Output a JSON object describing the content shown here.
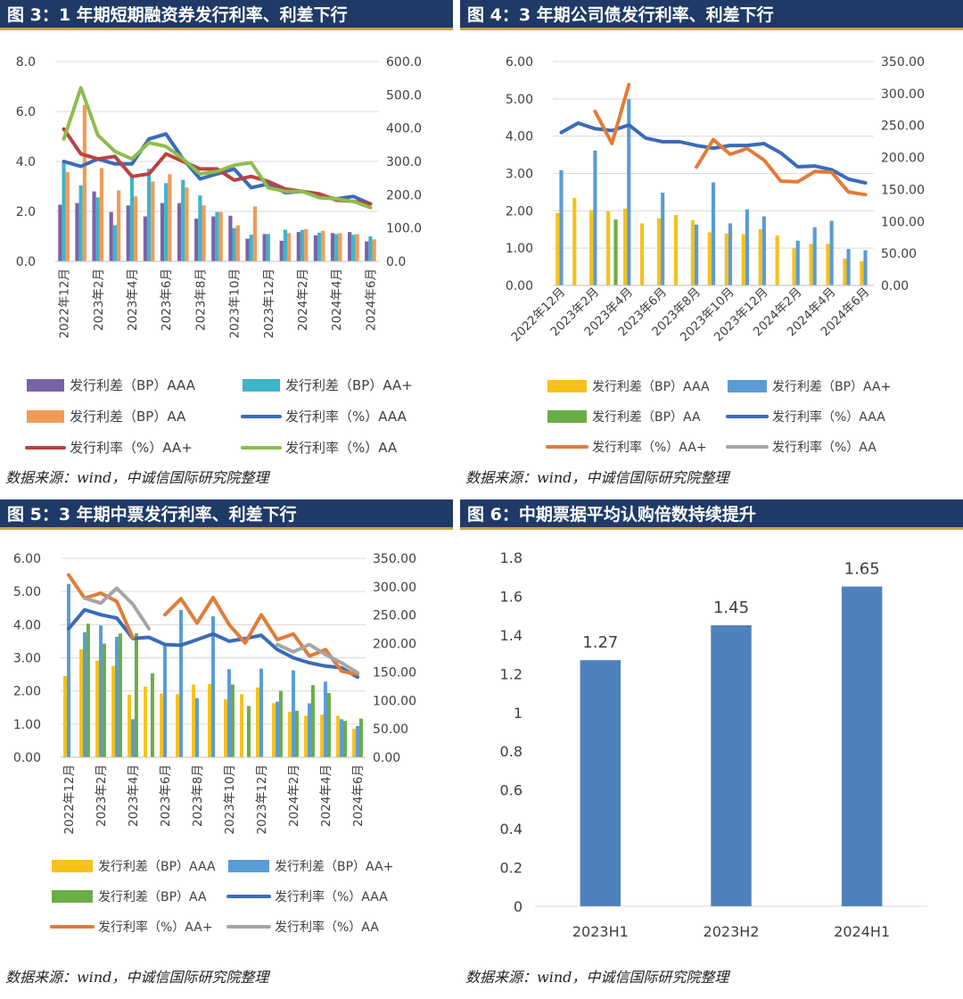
{
  "panels": [
    {
      "title": "图 3：1 年期短期融资券发行利率、利差下行",
      "source": "数据来源：wind，中诚信国际研究院整理"
    },
    {
      "title": "图 4：3 年期公司债发行利率、利差下行",
      "source": "数据来源：wind，中诚信国际研究院整理"
    },
    {
      "title": "图 5：3 年期中票发行利率、利差下行",
      "source": "数据来源：wind，中诚信国际研究院整理"
    },
    {
      "title": "图 6：中期票据平均认购倍数持续提升",
      "source": "数据来源：wind，中诚信国际研究院整理"
    }
  ],
  "chart_data": [
    {
      "type": "bar",
      "categories": [
        "2022年12月",
        "2023年1月",
        "2023年2月",
        "2023年3月",
        "2023年4月",
        "2023年5月",
        "2023年6月",
        "2023年7月",
        "2023年8月",
        "2023年9月",
        "2023年10月",
        "2023年11月",
        "2023年12月",
        "2024年1月",
        "2024年2月",
        "2024年3月",
        "2024年4月",
        "2024年5月",
        "2024年6月"
      ],
      "tick_labels": [
        "2022年12月",
        "2023年2月",
        "2023年4月",
        "2023年6月",
        "2023年8月",
        "2023年10月",
        "2023年12月",
        "2024年2月",
        "2024年4月",
        "2024年6月"
      ],
      "left_axis": {
        "min": 0,
        "max": 8,
        "ticks": [
          "0.0",
          "2.0",
          "4.0",
          "6.0",
          "8.0"
        ]
      },
      "right_axis": {
        "min": 0,
        "max": 600,
        "ticks": [
          "0.0",
          "100.0",
          "200.0",
          "300.0",
          "400.0",
          "500.0",
          "600.0"
        ]
      },
      "bar_series": [
        {
          "name": "发行利差（BP）AAA",
          "color": "#7b62a8",
          "values": [
            170,
            175,
            210,
            148,
            168,
            135,
            175,
            175,
            128,
            135,
            137,
            68,
            82,
            62,
            88,
            78,
            85,
            88,
            60
          ]
        },
        {
          "name": "发行利差（BP）AA+",
          "color": "#3fb5c8",
          "values": [
            300,
            228,
            192,
            108,
            252,
            278,
            235,
            245,
            198,
            148,
            100,
            80,
            82,
            95,
            94,
            86,
            82,
            80,
            75
          ]
        },
        {
          "name": "发行利差（BP）AA",
          "color": "#f29b57",
          "values": [
            268,
            470,
            280,
            213,
            195,
            240,
            262,
            222,
            168,
            148,
            108,
            165,
            0,
            85,
            97,
            92,
            85,
            82,
            66
          ]
        }
      ],
      "line_series": [
        {
          "name": "发行利率（%）AAA",
          "color": "#3b6bb7",
          "values": [
            4.0,
            3.8,
            4.1,
            3.9,
            3.9,
            4.9,
            5.1,
            4.1,
            3.3,
            3.5,
            3.7,
            2.95,
            3.1,
            2.75,
            2.8,
            2.6,
            2.5,
            2.6,
            2.3
          ]
        },
        {
          "name": "发行利率（%）AA+",
          "color": "#b94341",
          "values": [
            5.3,
            4.3,
            4.1,
            4.2,
            3.4,
            3.5,
            4.3,
            4.0,
            3.7,
            3.7,
            3.25,
            3.4,
            3.2,
            2.9,
            2.8,
            2.7,
            2.45,
            2.4,
            2.3
          ]
        },
        {
          "name": "发行利率（%）AA",
          "color": "#8dbd4d",
          "values": [
            4.9,
            6.95,
            5.05,
            4.4,
            4.1,
            4.75,
            4.6,
            4.1,
            3.5,
            3.6,
            3.85,
            3.95,
            2.95,
            2.8,
            2.8,
            2.55,
            2.5,
            2.4,
            2.15
          ]
        }
      ],
      "legend": [
        "发行利差（BP）AAA",
        "发行利差（BP）AA+",
        "发行利差（BP）AA",
        "发行利率（%）AAA",
        "发行利率（%）AA+",
        "发行利率（%）AA"
      ]
    },
    {
      "type": "bar",
      "categories": [
        "2022年12月",
        "2023年1月",
        "2023年2月",
        "2023年3月",
        "2023年4月",
        "2023年5月",
        "2023年6月",
        "2023年7月",
        "2023年8月",
        "2023年9月",
        "2023年10月",
        "2023年11月",
        "2023年12月",
        "2024年1月",
        "2024年2月",
        "2024年3月",
        "2024年4月",
        "2024年5月",
        "2024年6月"
      ],
      "tick_labels": [
        "2022年12月",
        "2023年2月",
        "2023年4月",
        "2023年6月",
        "2023年8月",
        "2023年10月",
        "2023年12月",
        "2024年2月",
        "2024年4月",
        "2024年6月"
      ],
      "left_axis": {
        "min": 0,
        "max": 6,
        "ticks": [
          "0.00",
          "1.00",
          "2.00",
          "3.00",
          "4.00",
          "5.00",
          "6.00"
        ]
      },
      "right_axis": {
        "min": 0,
        "max": 350,
        "ticks": [
          "0.00",
          "50.00",
          "100.00",
          "150.00",
          "200.00",
          "250.00",
          "300.00",
          "350.00"
        ]
      },
      "bar_series": [
        {
          "name": "发行利差（BP）AAA",
          "color": "#f5c21b",
          "values": [
            113,
            137,
            118,
            116,
            120,
            97,
            105,
            110,
            102,
            83,
            81,
            80,
            88,
            78,
            58,
            65,
            65,
            42,
            38
          ]
        },
        {
          "name": "发行利差（BP）AA+",
          "color": "#5b9bd5",
          "values": [
            180,
            0,
            211,
            0,
            291,
            0,
            145,
            0,
            95,
            161,
            97,
            119,
            108,
            0,
            70,
            91,
            101,
            57,
            55
          ]
        },
        {
          "name": "发行利差（BP）AA",
          "color": "#6aad46",
          "values": [
            0,
            0,
            0,
            103,
            0,
            0,
            0,
            0,
            0,
            0,
            0,
            0,
            0,
            0,
            0,
            0,
            0,
            0,
            0
          ]
        }
      ],
      "line_series": [
        {
          "name": "发行利率（%）AAA",
          "color": "#3b6bb7",
          "values": [
            4.1,
            4.35,
            4.2,
            4.15,
            4.3,
            3.95,
            3.85,
            3.85,
            3.75,
            3.68,
            3.75,
            3.75,
            3.8,
            3.55,
            3.18,
            3.2,
            3.1,
            2.85,
            2.75
          ]
        },
        {
          "name": "发行利率（%）AA+",
          "color": "#e27b37",
          "values": [
            null,
            null,
            272,
            222,
            314,
            null,
            null,
            null,
            185,
            228,
            205,
            214,
            196,
            163,
            162,
            178,
            177,
            146,
            142
          ]
        },
        {
          "name": "发行利率（%）AA",
          "color": "#a5a5a5",
          "values": [
            null,
            null,
            null,
            null,
            null,
            null,
            null,
            null,
            null,
            null,
            null,
            null,
            null,
            null,
            null,
            null,
            null,
            null,
            null
          ]
        }
      ],
      "right_line_series": [
        "发行利率（%）AA+"
      ],
      "legend": [
        "发行利差（BP）AAA",
        "发行利差（BP）AA+",
        "发行利差（BP）AA",
        "发行利率（%）AAA",
        "发行利率（%）AA+",
        "发行利率（%）AA"
      ]
    },
    {
      "type": "bar",
      "categories": [
        "2022年12月",
        "2023年1月",
        "2023年2月",
        "2023年3月",
        "2023年4月",
        "2023年5月",
        "2023年6月",
        "2023年7月",
        "2023年8月",
        "2023年9月",
        "2023年10月",
        "2023年11月",
        "2023年12月",
        "2024年1月",
        "2024年2月",
        "2024年3月",
        "2024年4月",
        "2024年5月",
        "2024年6月"
      ],
      "tick_labels": [
        "2022年12月",
        "2023年2月",
        "2023年4月",
        "2023年6月",
        "2023年8月",
        "2023年10月",
        "2023年12月",
        "2024年2月",
        "2024年4月",
        "2024年6月"
      ],
      "left_axis": {
        "min": 0,
        "max": 6,
        "ticks": [
          "0.00",
          "1.00",
          "2.00",
          "3.00",
          "4.00",
          "5.00",
          "6.00"
        ]
      },
      "right_axis": {
        "min": 0,
        "max": 350,
        "ticks": [
          "0.00",
          "50.00",
          "100.00",
          "150.00",
          "200.00",
          "250.00",
          "300.00",
          "350.00"
        ]
      },
      "bar_series": [
        {
          "name": "发行利差（BP）AAA",
          "color": "#f5c21b",
          "values": [
            143,
            190,
            170,
            161,
            110,
            124,
            112,
            111,
            128,
            129,
            102,
            111,
            123,
            95,
            80,
            73,
            75,
            73,
            50
          ]
        },
        {
          "name": "发行利差（BP）AA+",
          "color": "#5b9bd5",
          "values": [
            305,
            220,
            232,
            212,
            67,
            0,
            200,
            259,
            104,
            248,
            155,
            0,
            156,
            98,
            153,
            95,
            133,
            67,
            55
          ]
        },
        {
          "name": "发行利差（BP）AA",
          "color": "#6aad46",
          "values": [
            0,
            235,
            200,
            218,
            218,
            148,
            0,
            0,
            0,
            0,
            128,
            90,
            0,
            117,
            82,
            127,
            113,
            64,
            68
          ]
        }
      ],
      "line_series": [
        {
          "name": "发行利率（%）AAA",
          "color": "#3b6bb7",
          "values": [
            3.88,
            4.45,
            4.3,
            4.2,
            3.58,
            3.62,
            3.4,
            3.38,
            3.55,
            3.72,
            3.5,
            3.58,
            3.68,
            3.25,
            3.0,
            2.85,
            2.75,
            2.7,
            2.42
          ]
        },
        {
          "name": "发行利率（%）AA+",
          "color": "#e27b37",
          "values": [
            5.5,
            4.8,
            4.95,
            4.7,
            3.6,
            null,
            4.3,
            4.78,
            4.05,
            4.82,
            4.0,
            3.45,
            4.3,
            3.55,
            3.72,
            3.05,
            3.25,
            2.6,
            2.5
          ]
        },
        {
          "name": "发行利率（%）AA",
          "color": "#a5a5a5",
          "values": [
            null,
            4.8,
            4.65,
            5.1,
            4.62,
            3.88,
            null,
            null,
            null,
            null,
            null,
            null,
            null,
            3.4,
            3.18,
            3.4,
            3.1,
            2.85,
            2.55
          ]
        }
      ],
      "legend": [
        "发行利差（BP）AAA",
        "发行利差（BP）AA+",
        "发行利差（BP）AA",
        "发行利率（%）AAA",
        "发行利率（%）AA+",
        "发行利率（%）AA"
      ]
    },
    {
      "type": "bar",
      "categories": [
        "2023H1",
        "2023H2",
        "2024H1"
      ],
      "values": [
        1.27,
        1.45,
        1.65
      ],
      "data_labels": [
        "1.27",
        "1.45",
        "1.65"
      ],
      "color": "#4f81bd",
      "ylim": [
        0,
        1.8
      ],
      "y_ticks": [
        "0",
        "0.2",
        "0.4",
        "0.6",
        "0.8",
        "1",
        "1.2",
        "1.4",
        "1.6",
        "1.8"
      ]
    }
  ]
}
